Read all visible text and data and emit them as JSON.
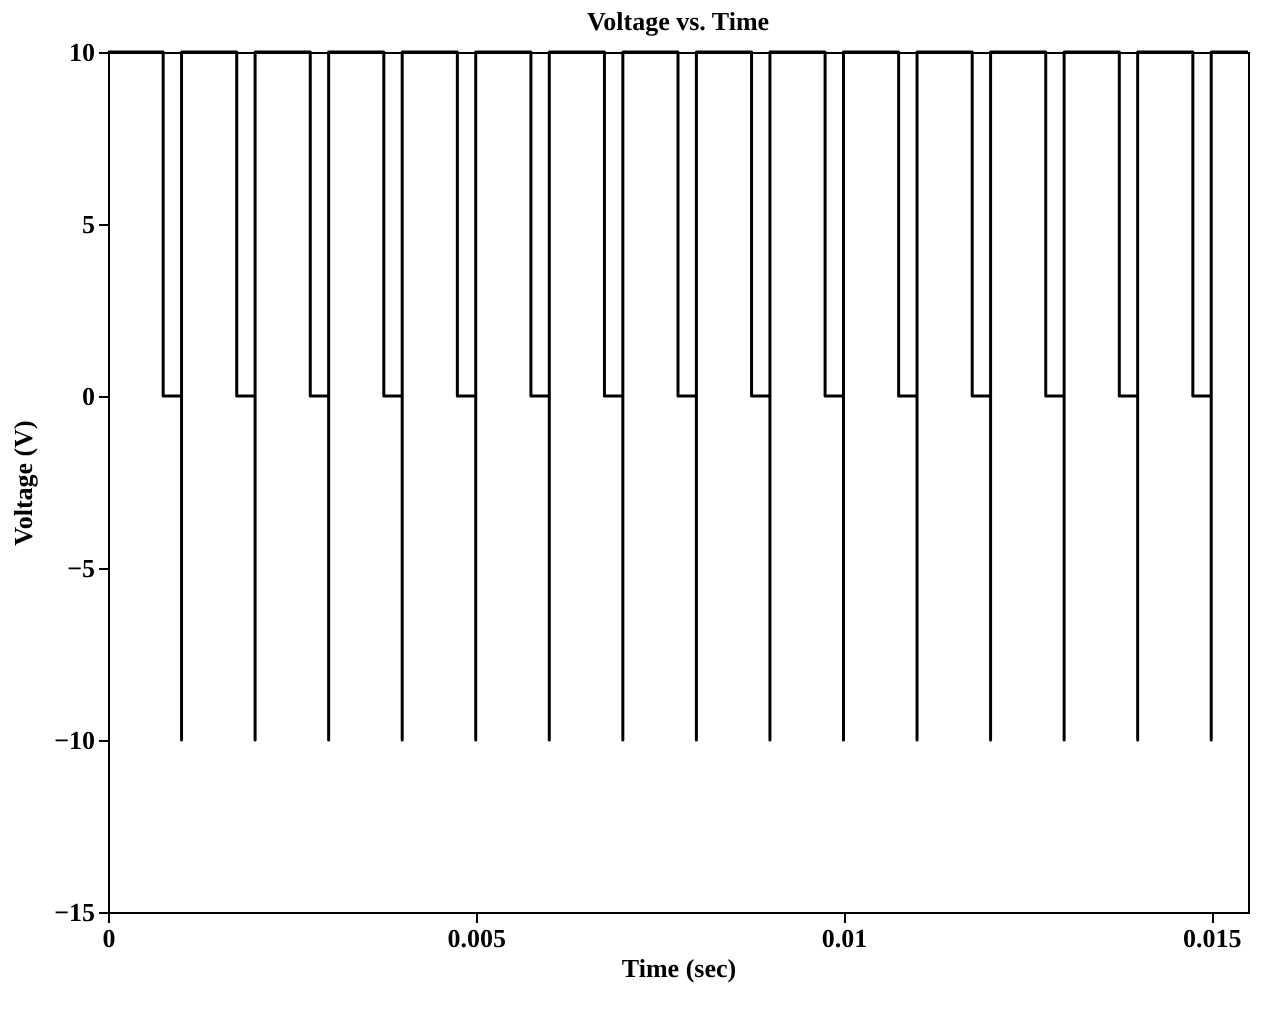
{
  "chart_data": {
    "type": "line",
    "title": "Voltage vs. Time",
    "xlabel": "Time (sec)",
    "ylabel": "Voltage (V)",
    "x": [
      0,
      0.00075,
      0.00075,
      0.001,
      0.001,
      0.001,
      0.00175,
      0.00175,
      0.002,
      0.002,
      0.002,
      0.00275,
      0.00275,
      0.003,
      0.003,
      0.003,
      0.00375,
      0.00375,
      0.004,
      0.004,
      0.004,
      0.00475,
      0.00475,
      0.005,
      0.005,
      0.005,
      0.00575,
      0.00575,
      0.006,
      0.006,
      0.006,
      0.00675,
      0.00675,
      0.007,
      0.007,
      0.007,
      0.00775,
      0.00775,
      0.008,
      0.008,
      0.008,
      0.00875,
      0.00875,
      0.009,
      0.009,
      0.009,
      0.00975,
      0.00975,
      0.01,
      0.01,
      0.01,
      0.01075,
      0.01075,
      0.011,
      0.011,
      0.011,
      0.01175,
      0.01175,
      0.012,
      0.012,
      0.012,
      0.01275,
      0.01275,
      0.013,
      0.013,
      0.013,
      0.01375,
      0.01375,
      0.014,
      0.014,
      0.014,
      0.01475,
      0.01475,
      0.015,
      0.015,
      0.015,
      0.0155
    ],
    "series": [
      {
        "color": "#000000",
        "values": [
          10,
          10,
          0,
          0,
          -10,
          10,
          10,
          0,
          0,
          -10,
          10,
          10,
          0,
          0,
          -10,
          10,
          10,
          0,
          0,
          -10,
          10,
          10,
          0,
          0,
          -10,
          10,
          10,
          0,
          0,
          -10,
          10,
          10,
          0,
          0,
          -10,
          10,
          10,
          0,
          0,
          -10,
          10,
          10,
          0,
          0,
          -10,
          10,
          10,
          0,
          0,
          -10,
          10,
          10,
          0,
          0,
          -10,
          10,
          10,
          0,
          0,
          -10,
          10,
          10,
          0,
          0,
          -10,
          10,
          10,
          0,
          0,
          -10,
          10,
          10,
          0,
          0,
          -10,
          10,
          10
        ]
      }
    ],
    "xlim": [
      0,
      0.0155
    ],
    "xticks": [
      0,
      0.005,
      0.01,
      0.015
    ],
    "ylim": [
      -15,
      10
    ],
    "yticks": [
      -15,
      -10,
      -5,
      0,
      5,
      10
    ],
    "grid": false,
    "legend": false,
    "marker": "none",
    "line_style": "solid"
  }
}
